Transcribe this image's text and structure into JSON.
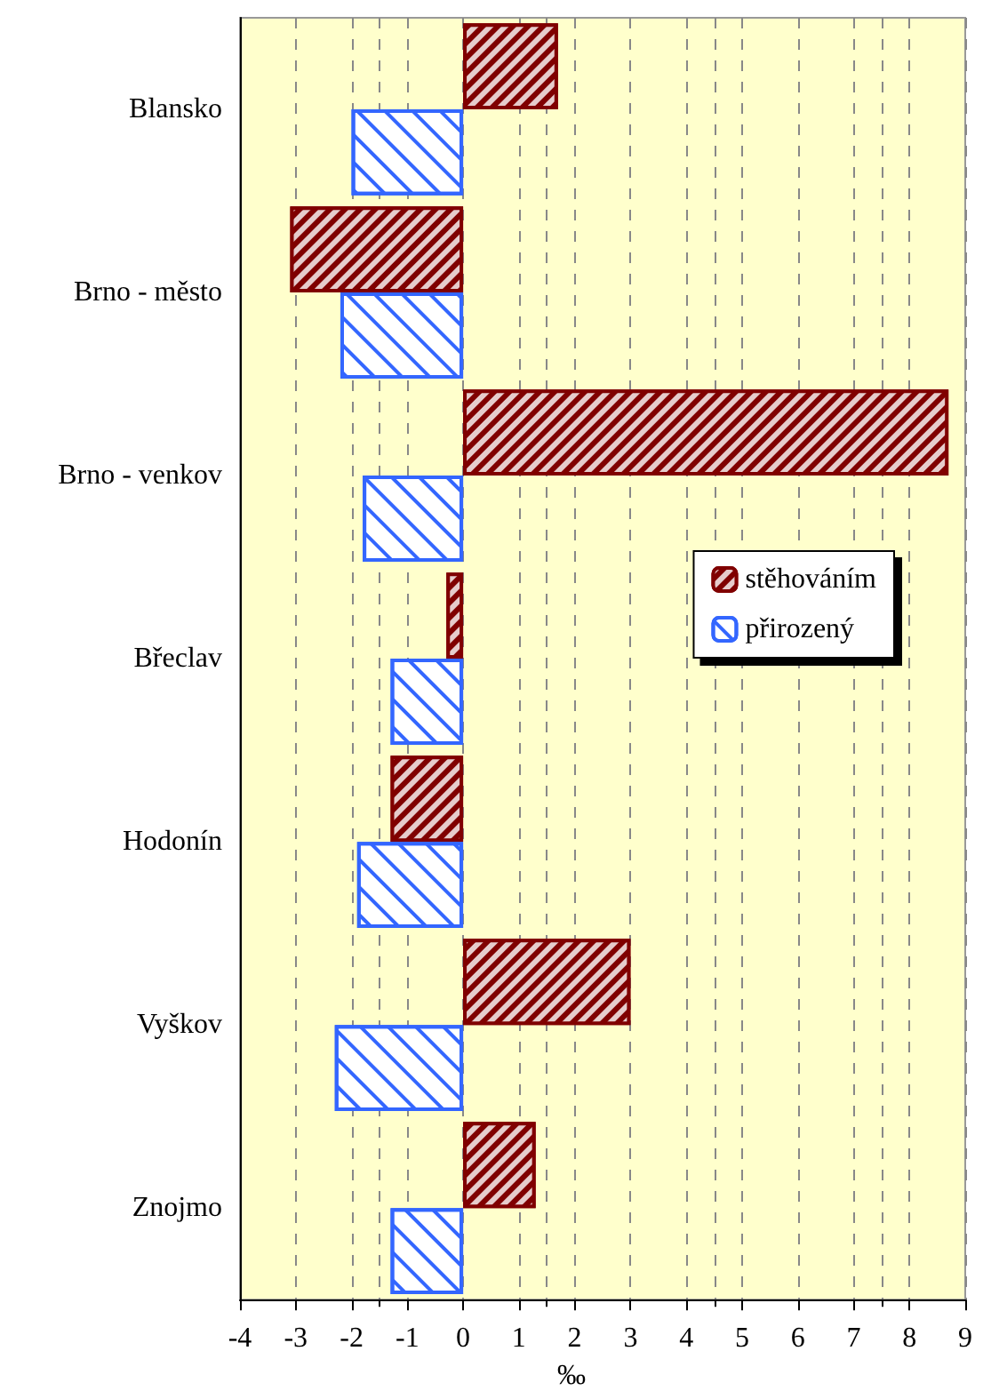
{
  "chart_data": {
    "type": "bar",
    "orientation": "horizontal",
    "categories": [
      "Blansko",
      "Brno - město",
      "Brno - venkov",
      "Břeclav",
      "Hodonín",
      "Vyškov",
      "Znojmo"
    ],
    "series": [
      {
        "name": "stěhováním",
        "color": "#800000",
        "values": [
          1.7,
          -3.1,
          8.7,
          -0.3,
          -1.3,
          3.0,
          1.3
        ]
      },
      {
        "name": "přirozený",
        "color": "#3366ff",
        "values": [
          -2.0,
          -2.2,
          -1.8,
          -1.3,
          -1.9,
          -2.3,
          -1.3
        ]
      }
    ],
    "xlabel": "‰",
    "xlim": [
      -4,
      9
    ],
    "xticks": [
      -4,
      -3,
      -2,
      -1,
      0,
      1,
      2,
      3,
      4,
      5,
      6,
      7,
      8,
      9
    ],
    "grid": "x",
    "legend": "right"
  }
}
